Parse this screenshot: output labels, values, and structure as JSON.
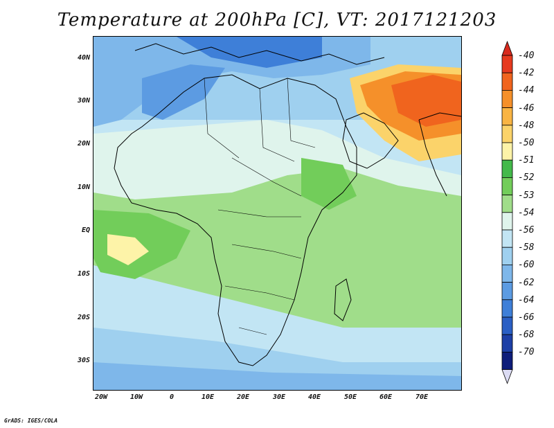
{
  "title": "Temperature at 200hPa [C], VT: 2017121203",
  "footer": "GrADS: IGES/COLA",
  "lat_labels": [
    "40N",
    "30N",
    "20N",
    "10N",
    "EQ",
    "10S",
    "20S",
    "30S"
  ],
  "lon_labels": [
    "20W",
    "10W",
    "0",
    "10E",
    "20E",
    "30E",
    "40E",
    "50E",
    "60E",
    "70E"
  ],
  "colorbar": {
    "labels": [
      "-40",
      "-42",
      "-44",
      "-46",
      "-48",
      "-50",
      "-51",
      "-52",
      "-53",
      "-54",
      "-56",
      "-58",
      "-60",
      "-62",
      "-64",
      "-66",
      "-68",
      "-70"
    ],
    "colors": [
      "#e63a1f",
      "#f0641e",
      "#f5902a",
      "#f9b443",
      "#fbd36a",
      "#fdf3a8",
      "#43b94a",
      "#72cd5a",
      "#a0dd8a",
      "#dff4ec",
      "#c2e5f4",
      "#9fd0ef",
      "#7eb7ea",
      "#5c9be2",
      "#3e7fd8",
      "#2a5fc4",
      "#1d3fa6",
      "#0e1d7a"
    ],
    "top_arrow_color": "#d82a1e",
    "bottom_arrow_color": "#dcdcf4"
  },
  "palette": {
    "deep_blue": "#3e7fd8",
    "mid_blue": "#7eb7ea",
    "light_blue": "#c2e5f4",
    "pale": "#dff4ec",
    "light_green": "#a0dd8a",
    "green": "#72cd5a",
    "dark_green": "#43b94a",
    "yellow": "#fdf3a8",
    "orange": "#f5902a",
    "red_orange": "#f0641e"
  }
}
